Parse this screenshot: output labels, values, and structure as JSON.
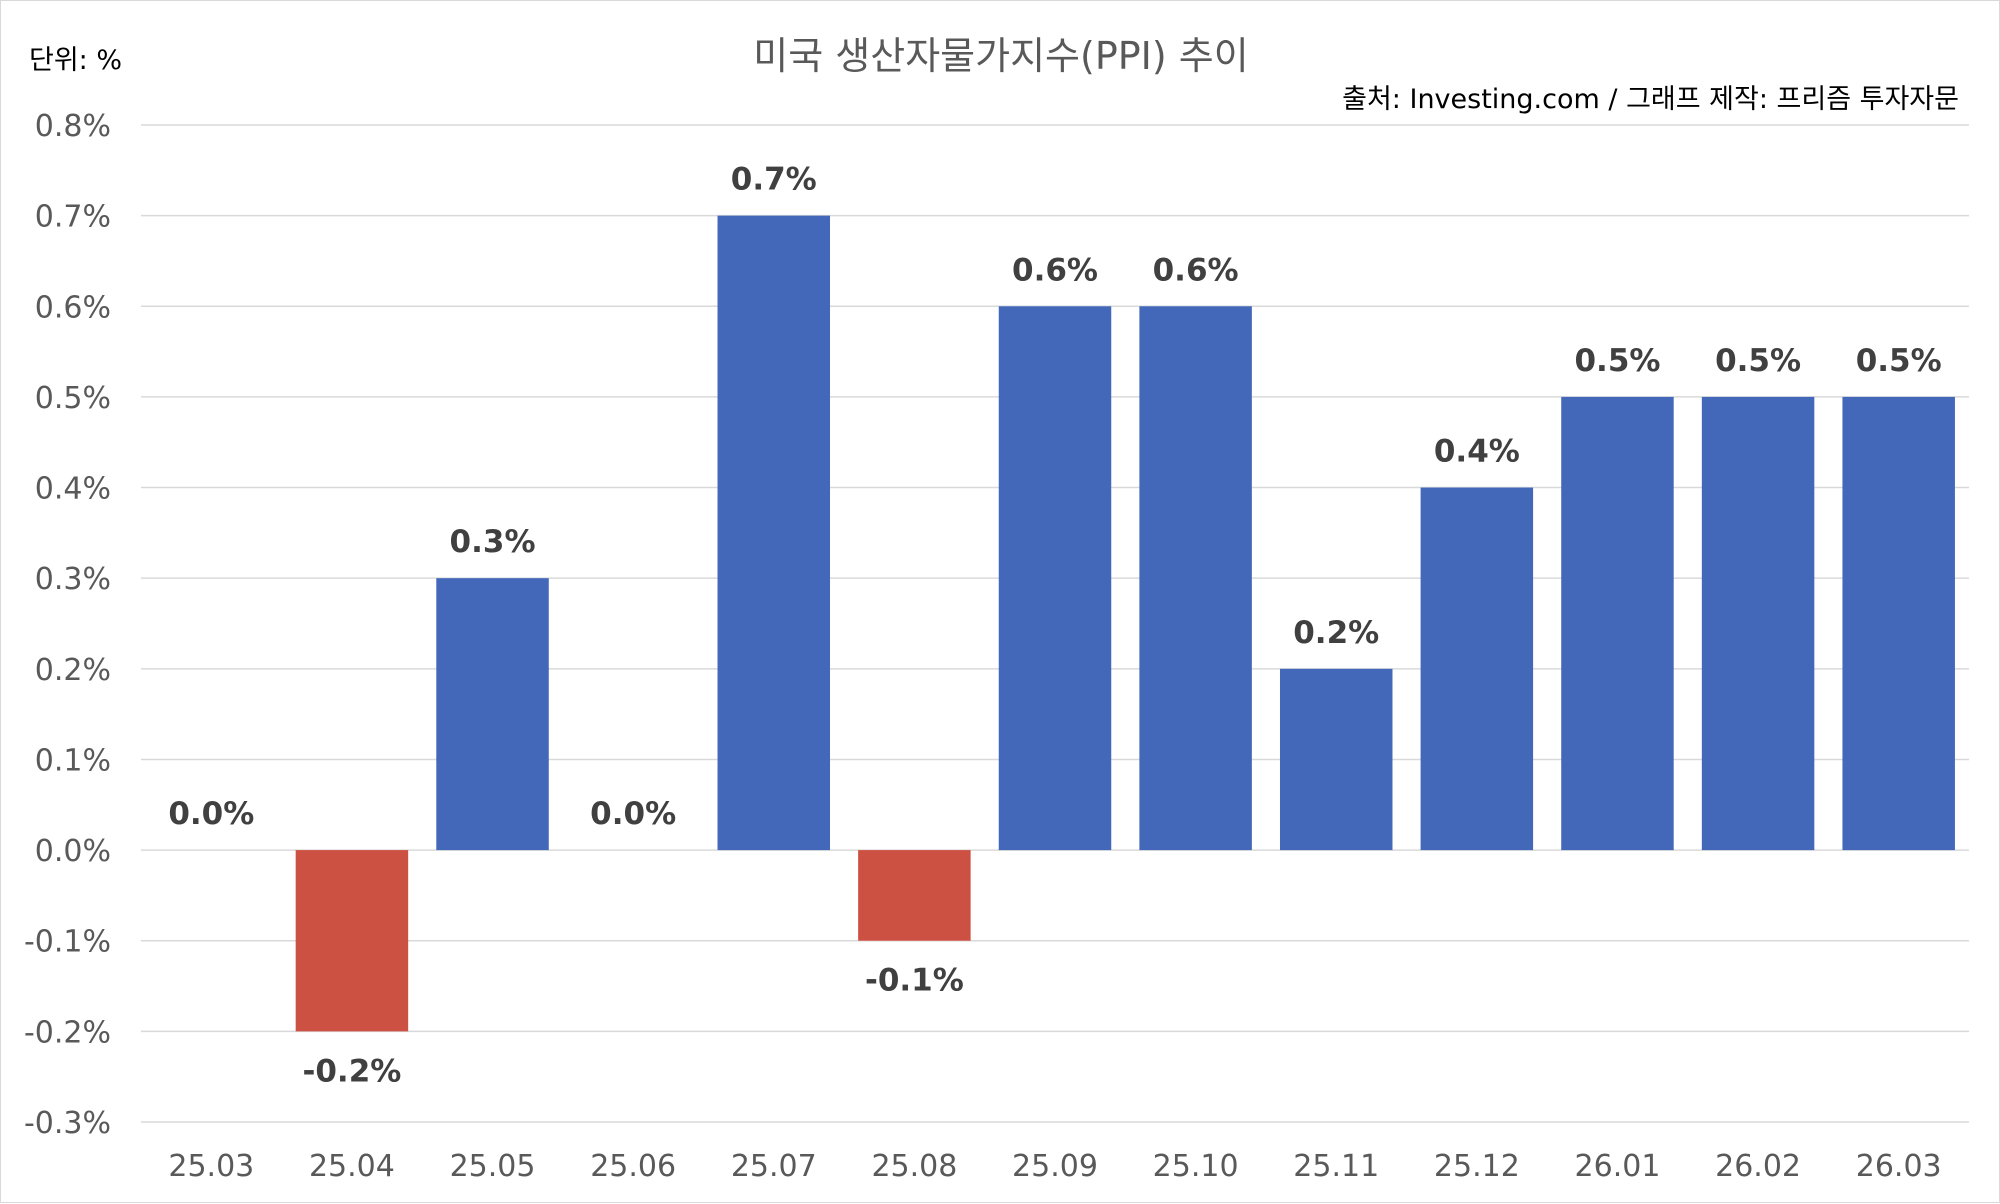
{
  "chart_data": {
    "type": "bar",
    "title": "미국 생산자물가지수(PPI) 추이",
    "unit_label": "단위: %",
    "source_label": "출처: Investing.com / 그래프 제작: 프리즘 투자자문",
    "categories": [
      "25.03",
      "25.04",
      "25.05",
      "25.06",
      "25.07",
      "25.08",
      "25.09",
      "25.10",
      "25.11",
      "25.12",
      "26.01",
      "26.02",
      "26.03"
    ],
    "values": [
      0.0,
      -0.2,
      0.3,
      0.0,
      0.7,
      -0.1,
      0.6,
      0.6,
      0.2,
      0.4,
      0.5,
      0.5,
      0.5
    ],
    "data_labels": [
      "0.0%",
      "-0.2%",
      "0.3%",
      "0.0%",
      "0.7%",
      "-0.1%",
      "0.6%",
      "0.6%",
      "0.2%",
      "0.4%",
      "0.5%",
      "0.5%",
      "0.5%"
    ],
    "y_ticks": [
      "-0.3%",
      "-0.2%",
      "-0.1%",
      "0.0%",
      "0.1%",
      "0.2%",
      "0.3%",
      "0.4%",
      "0.5%",
      "0.6%",
      "0.7%",
      "0.8%"
    ],
    "ylim": [
      -0.3,
      0.8
    ],
    "grid": true,
    "legend": "none",
    "colors": {
      "positive": "#4368BA",
      "negative": "#CD5143"
    }
  }
}
